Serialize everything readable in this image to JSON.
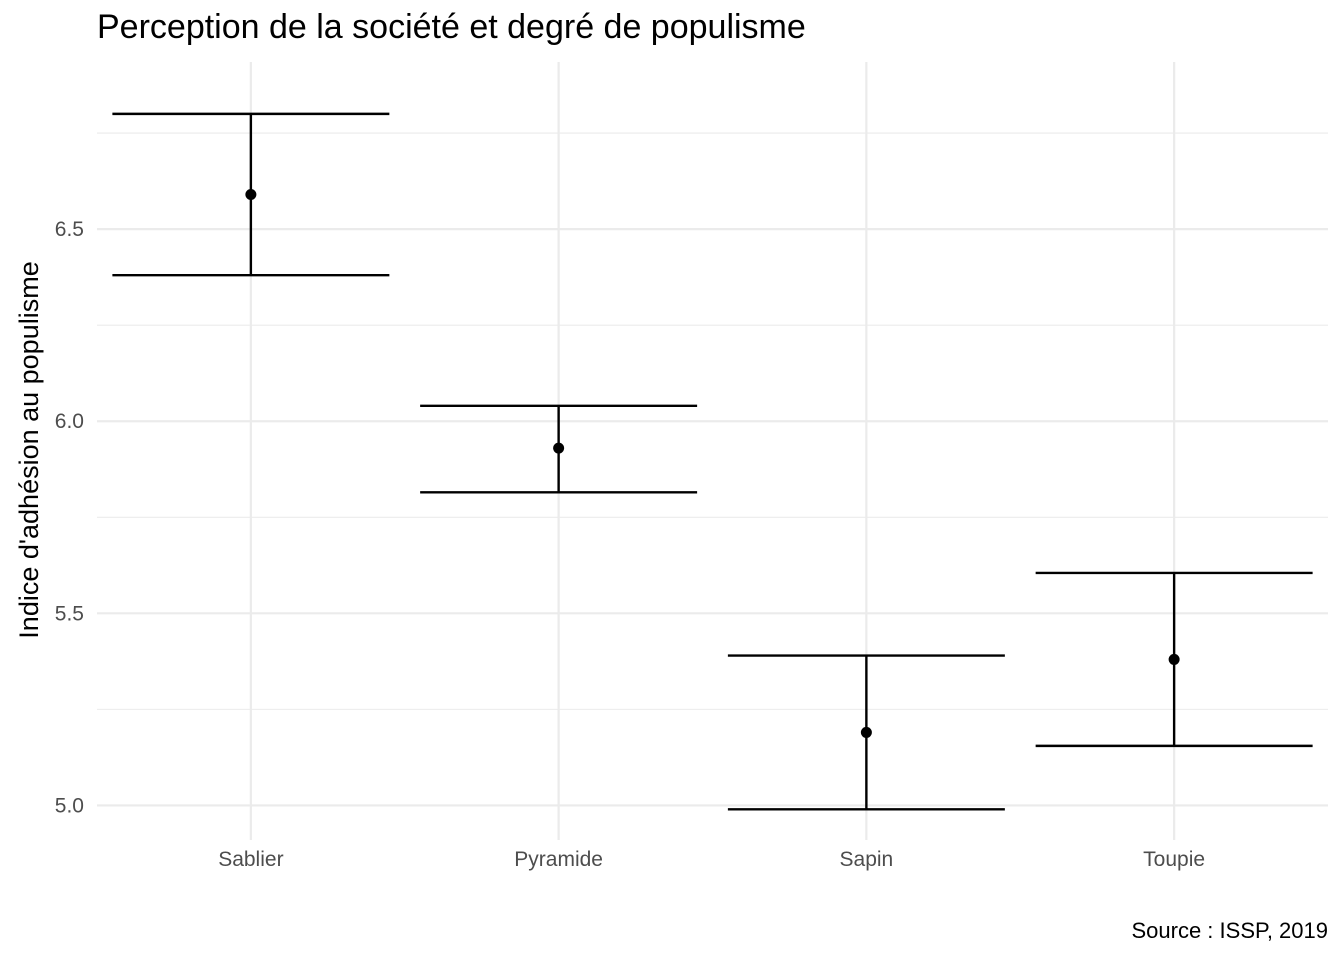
{
  "chart_data": {
    "type": "errorbar",
    "title": "Perception de la société et degré de populisme",
    "xlabel": "",
    "ylabel": "Indice d'adhésion au populisme",
    "caption": "Source : ISSP, 2019",
    "categories": [
      "Sablier",
      "Pyramide",
      "Sapin",
      "Toupie"
    ],
    "series": [
      {
        "values": [
          6.59,
          5.93,
          5.19,
          5.38
        ],
        "lower": [
          6.38,
          5.815,
          4.99,
          5.155
        ],
        "upper": [
          6.8,
          6.04,
          5.39,
          5.605
        ]
      }
    ],
    "ylim": [
      4.91,
      6.935
    ],
    "yticks": [
      5.0,
      5.5,
      6.0,
      6.5
    ],
    "ytick_labels": [
      "5.0",
      "5.5",
      "6.0",
      "6.5"
    ],
    "grid": true,
    "theme": "minimal",
    "colors": {
      "mark": "#000000",
      "grid": "#ebebeb",
      "tick_text": "#4d4d4d"
    }
  }
}
